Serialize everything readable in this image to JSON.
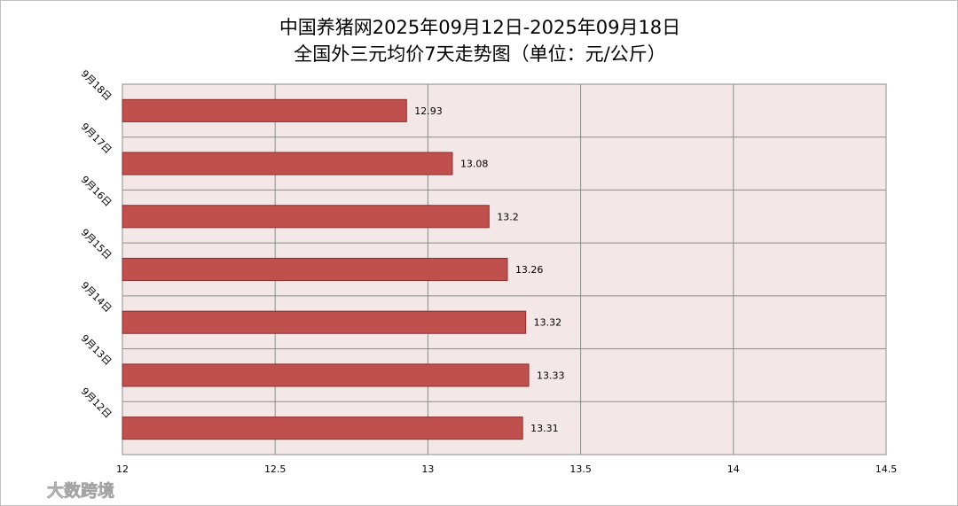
{
  "chart_data": {
    "type": "bar",
    "orientation": "horizontal",
    "title": "中国养猪网2025年09月12日-2025年09月18日",
    "subtitle": "全国外三元均价7天走势图（单位：元/公斤）",
    "xlabel": "",
    "ylabel": "",
    "categories": [
      "9月18日",
      "9月17日",
      "9月16日",
      "9月15日",
      "9月14日",
      "9月13日",
      "9月12日"
    ],
    "values": [
      12.93,
      13.08,
      13.2,
      13.26,
      13.32,
      13.33,
      13.31
    ],
    "data_labels": [
      "12.93",
      "13.08",
      "13.2",
      "13.26",
      "13.32",
      "13.33",
      "13.31"
    ],
    "xlim": [
      12,
      14.5
    ],
    "x_ticks": [
      "12",
      "12.5",
      "13",
      "13.5",
      "14",
      "14.5"
    ],
    "grid": true,
    "legend": "none",
    "colors": {
      "bar": "#c0504d",
      "bar_edge": "#8c2e2c",
      "plot_background": "#f3e7e7",
      "grid": "#8c8c8c"
    }
  },
  "watermark": {
    "logo_icon": "dashu-logo-icon",
    "text": "大数跨境"
  }
}
